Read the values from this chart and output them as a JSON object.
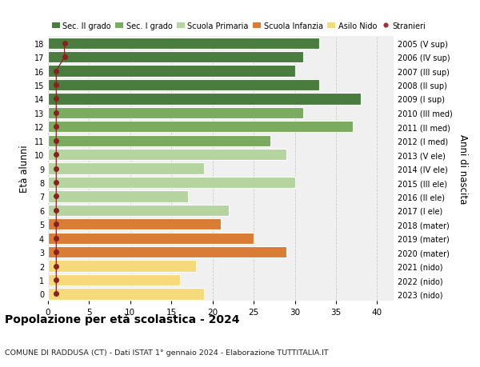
{
  "ages": [
    18,
    17,
    16,
    15,
    14,
    13,
    12,
    11,
    10,
    9,
    8,
    7,
    6,
    5,
    4,
    3,
    2,
    1,
    0
  ],
  "right_labels": [
    "2005 (V sup)",
    "2006 (IV sup)",
    "2007 (III sup)",
    "2008 (II sup)",
    "2009 (I sup)",
    "2010 (III med)",
    "2011 (II med)",
    "2012 (I med)",
    "2013 (V ele)",
    "2014 (IV ele)",
    "2015 (III ele)",
    "2016 (II ele)",
    "2017 (I ele)",
    "2018 (mater)",
    "2019 (mater)",
    "2020 (mater)",
    "2021 (nido)",
    "2022 (nido)",
    "2023 (nido)"
  ],
  "bar_values": [
    33,
    31,
    30,
    33,
    38,
    31,
    37,
    27,
    29,
    19,
    30,
    17,
    22,
    21,
    25,
    29,
    18,
    16,
    19
  ],
  "bar_colors": [
    "#4a7c3f",
    "#4a7c3f",
    "#4a7c3f",
    "#4a7c3f",
    "#4a7c3f",
    "#7aab5e",
    "#7aab5e",
    "#7aab5e",
    "#b5d4a0",
    "#b5d4a0",
    "#b5d4a0",
    "#b5d4a0",
    "#b5d4a0",
    "#d97c35",
    "#d97c35",
    "#d97c35",
    "#f5d97a",
    "#f5d97a",
    "#f5d97a"
  ],
  "legend_labels": [
    "Sec. II grado",
    "Sec. I grado",
    "Scuola Primaria",
    "Scuola Infanzia",
    "Asilo Nido",
    "Stranieri"
  ],
  "legend_colors": [
    "#4a7c3f",
    "#7aab5e",
    "#b5d4a0",
    "#d97c35",
    "#f5d97a",
    "#a83030"
  ],
  "ylabel_left": "Età alunni",
  "ylabel_right": "Anni di nascita",
  "title": "Popolazione per età scolastica - 2024",
  "subtitle": "COMUNE DI RADDUSA (CT) - Dati ISTAT 1° gennaio 2024 - Elaborazione TUTTITALIA.IT",
  "xlim": [
    0,
    42
  ],
  "xticks": [
    0,
    5,
    10,
    15,
    20,
    25,
    30,
    35,
    40
  ],
  "bg_color": "#ffffff",
  "bar_bg_color": "#f0f0f0",
  "grid_color": "#cccccc",
  "stranieri_x": [
    2,
    2,
    1,
    1,
    1,
    1,
    1,
    1,
    1,
    1,
    1,
    1,
    1,
    1,
    1,
    1,
    1,
    1,
    1
  ],
  "stranieri_line_color": "#8b2020",
  "stranieri_dot_color": "#8b2020"
}
